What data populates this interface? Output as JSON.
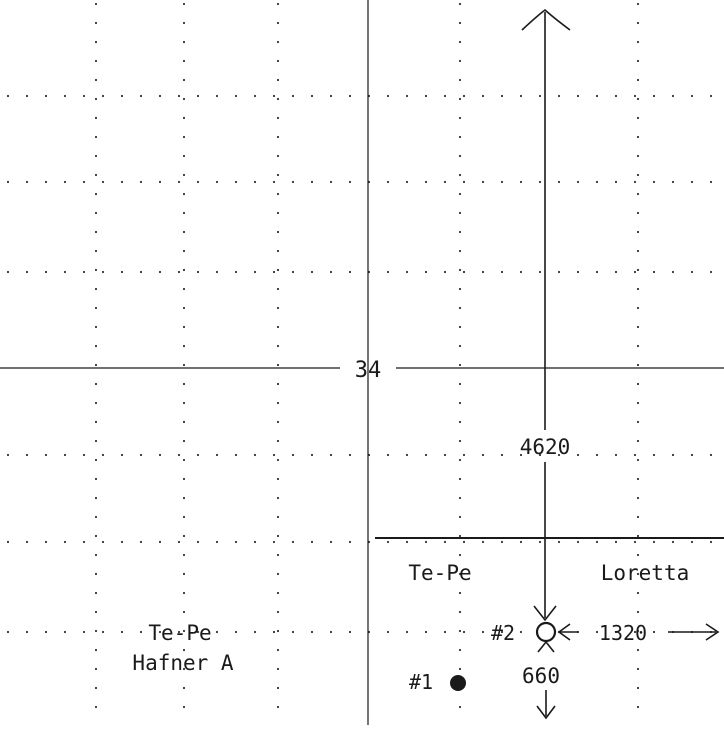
{
  "section_number": "34",
  "tracts": {
    "left_lease_line1": "Te-Pe",
    "left_lease_line2": "Hafner A",
    "center_lease": "Te-Pe",
    "right_lease": "Loretta"
  },
  "wells": {
    "well1_label": "#1",
    "well2_label": "#2"
  },
  "dimensions": {
    "north_distance": "4620",
    "east_distance": "1320",
    "south_distance": "660"
  }
}
